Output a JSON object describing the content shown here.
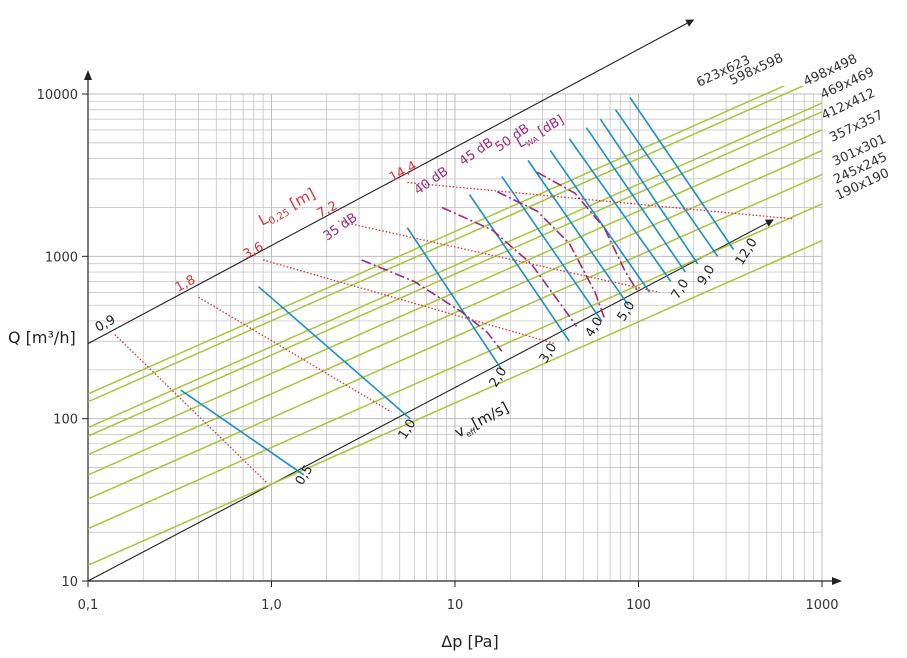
{
  "chart_data": {
    "type": "line",
    "title": "",
    "xlabel": "Δp [Pa]",
    "ylabel": "Q [m³/h]",
    "xscale": "log",
    "yscale": "log",
    "xlim": [
      0.1,
      1000
    ],
    "ylim": [
      10,
      10000
    ],
    "grid": true,
    "x_ticks": [
      "0,1",
      "1,0",
      "10",
      "100",
      "1000"
    ],
    "y_ticks": [
      "10",
      "100",
      "1000",
      "10000"
    ],
    "colors": {
      "size_lines": "#a8c43a",
      "velocity_lines": "#1a8ec8",
      "throw_lines": "#e03030",
      "noise_curves": "#a0287a",
      "axis_lines": "#222222",
      "grid": "#bdbdbd"
    },
    "size_series": [
      {
        "name": "623x623",
        "points": [
          [
            0.1,
            142
          ],
          [
            100,
            4500
          ]
        ]
      },
      {
        "name": "598x598",
        "points": [
          [
            0.1,
            127
          ],
          [
            100,
            4000
          ]
        ]
      },
      {
        "name": "498x498",
        "points": [
          [
            0.1,
            88
          ],
          [
            100,
            2780
          ]
        ]
      },
      {
        "name": "469x469",
        "points": [
          [
            0.1,
            78
          ],
          [
            100,
            2460
          ]
        ]
      },
      {
        "name": "412x412",
        "points": [
          [
            0.1,
            60
          ],
          [
            100,
            1900
          ]
        ]
      },
      {
        "name": "357x357",
        "points": [
          [
            0.1,
            45
          ],
          [
            100,
            1420
          ]
        ]
      },
      {
        "name": "301x301",
        "points": [
          [
            0.1,
            32
          ],
          [
            100,
            1010
          ]
        ]
      },
      {
        "name": "245x245",
        "points": [
          [
            0.1,
            21
          ],
          [
            100,
            665
          ]
        ]
      },
      {
        "name": "190x190",
        "points": [
          [
            0.1,
            12.5
          ],
          [
            100,
            395
          ]
        ]
      }
    ],
    "size_labels": [
      "623x623",
      "598x598",
      "498x498",
      "469x469",
      "412x412",
      "357x357",
      "301x301",
      "245x245",
      "190x190"
    ],
    "velocity_axis": {
      "label_main": "v",
      "label_sub": "eff",
      "label_unit": "[m/s]",
      "start": [
        0.1,
        10
      ],
      "end": [
        500,
        1600
      ]
    },
    "velocity_lines": [
      {
        "label": "0,5",
        "points": [
          [
            0.32,
            150
          ],
          [
            1.5,
            45
          ]
        ]
      },
      {
        "label": "1,0",
        "points": [
          [
            0.85,
            650
          ],
          [
            5.7,
            100
          ]
        ]
      },
      {
        "label": "2,0",
        "points": [
          [
            5.5,
            1500
          ],
          [
            18,
            200
          ]
        ]
      },
      {
        "label": "3,0",
        "points": [
          [
            12,
            2400
          ],
          [
            42,
            300
          ]
        ]
      },
      {
        "label": "4,0",
        "points": [
          [
            18,
            3100
          ],
          [
            63,
            400
          ]
        ]
      },
      {
        "label": "5,0",
        "points": [
          [
            25,
            3900
          ],
          [
            88,
            500
          ]
        ]
      },
      {
        "label": "",
        "points": [
          [
            33,
            4500
          ],
          [
            115,
            600
          ]
        ]
      },
      {
        "label": "7,0",
        "points": [
          [
            42,
            5300
          ],
          [
            150,
            700
          ]
        ]
      },
      {
        "label": "",
        "points": [
          [
            52,
            6200
          ],
          [
            180,
            800
          ]
        ]
      },
      {
        "label": "9,0",
        "points": [
          [
            62,
            7000
          ],
          [
            210,
            900
          ]
        ]
      },
      {
        "label": "",
        "points": [
          [
            75,
            8000
          ],
          [
            270,
            1000
          ]
        ]
      },
      {
        "label": "12,0",
        "points": [
          [
            90,
            9500
          ],
          [
            330,
            1100
          ]
        ]
      }
    ],
    "throw_axis": {
      "label_main": "L",
      "label_sub": "0,25",
      "label_unit": " [m]",
      "start": [
        0.1,
        290
      ],
      "end": [
        35,
        10000
      ]
    },
    "throw_lines": [
      {
        "label": "0,9",
        "points": [
          [
            0.14,
            330
          ],
          [
            0.95,
            40
          ]
        ]
      },
      {
        "label": "1,8",
        "points": [
          [
            0.4,
            560
          ],
          [
            4.5,
            110
          ]
        ]
      },
      {
        "label": "3,6",
        "points": [
          [
            0.9,
            950
          ],
          [
            35,
            290
          ]
        ]
      },
      {
        "label": "7,2",
        "points": [
          [
            2.3,
            1650
          ],
          [
            130,
            600
          ]
        ]
      },
      {
        "label": "14,4",
        "points": [
          [
            5.5,
            2850
          ],
          [
            700,
            1700
          ]
        ]
      }
    ],
    "noise_axis_label": {
      "main": "L",
      "sub": "WA",
      "unit": " [dB]"
    },
    "noise_curves": [
      {
        "label": "35 dB",
        "points": [
          [
            3.1,
            950
          ],
          [
            6,
            700
          ],
          [
            11,
            450
          ],
          [
            15,
            340
          ],
          [
            18,
            260
          ]
        ]
      },
      {
        "label": "40 dB",
        "points": [
          [
            8.5,
            2000
          ],
          [
            16,
            1450
          ],
          [
            26,
            900
          ],
          [
            38,
            500
          ],
          [
            46,
            370
          ]
        ]
      },
      {
        "label": "45 dB",
        "points": [
          [
            17,
            2500
          ],
          [
            28,
            1900
          ],
          [
            42,
            1200
          ],
          [
            58,
            600
          ],
          [
            65,
            420
          ]
        ]
      },
      {
        "label": "50 dB",
        "points": [
          [
            28,
            3300
          ],
          [
            45,
            2450
          ],
          [
            65,
            1500
          ],
          [
            85,
            800
          ],
          [
            98,
            620
          ]
        ]
      }
    ]
  }
}
